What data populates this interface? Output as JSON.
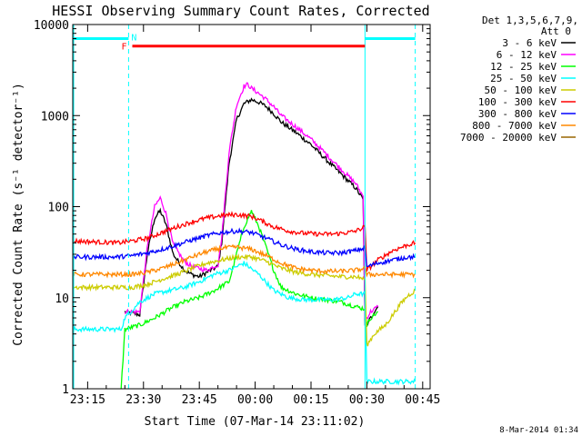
{
  "chart_data": {
    "type": "line",
    "title": "HESSI Observing Summary Count Rates, Corrected",
    "xlabel": "Start Time (07-Mar-14 23:11:02)",
    "ylabel": "Corrected Count Rate (s⁻¹ detector⁻¹)",
    "footer": "8-Mar-2014 01:34",
    "yscale": "log",
    "ylim": [
      1,
      10000
    ],
    "xlim_minutes": [
      0,
      96
    ],
    "x_ticks": [
      {
        "t": 4,
        "label": "23:15"
      },
      {
        "t": 19,
        "label": "23:30"
      },
      {
        "t": 34,
        "label": "23:45"
      },
      {
        "t": 49,
        "label": "00:00"
      },
      {
        "t": 64,
        "label": "00:15"
      },
      {
        "t": 79,
        "label": "00:30"
      },
      {
        "t": 94,
        "label": "00:45"
      }
    ],
    "y_ticks": [
      {
        "v": 1,
        "label": "1"
      },
      {
        "v": 10,
        "label": "10"
      },
      {
        "v": 100,
        "label": "100"
      },
      {
        "v": 1000,
        "label": "1000"
      },
      {
        "v": 10000,
        "label": "10000"
      }
    ],
    "legend": {
      "header": [
        "Det 1,3,5,6,7,9,",
        "Att 0"
      ],
      "position": "right"
    },
    "annotations": {
      "night_label": "N",
      "flare_label": "F",
      "night_color": "#00ffff",
      "flare_color": "#ff0000",
      "night_dashed_x": [
        15,
        92
      ],
      "day_solid_x": 78.5,
      "night_bar_segments": [
        [
          0,
          15
        ],
        [
          78.5,
          92
        ]
      ],
      "flare_bar": [
        16,
        78.5
      ]
    },
    "series": [
      {
        "name": "3 - 6 keV",
        "color": "#000000",
        "x": [
          14,
          18,
          20,
          22,
          23.5,
          25,
          27,
          30,
          32,
          34,
          36,
          37,
          38,
          39,
          40,
          42,
          44,
          46,
          48,
          50,
          52,
          54,
          56,
          60,
          64,
          68,
          72,
          76,
          78,
          78.5,
          79,
          80,
          81,
          82
        ],
        "y": [
          7,
          6.5,
          30,
          75,
          90,
          65,
          30,
          20,
          18,
          17,
          19,
          20,
          21,
          22,
          40,
          300,
          900,
          1350,
          1500,
          1400,
          1250,
          1050,
          850,
          650,
          480,
          330,
          230,
          160,
          120,
          5,
          5,
          6,
          7,
          8
        ]
      },
      {
        "name": "6 - 12 keV",
        "color": "#ff00ff",
        "x": [
          14,
          18,
          20,
          22,
          23.5,
          25,
          27,
          30,
          32,
          34,
          36,
          37,
          38,
          39,
          40,
          42,
          44,
          46,
          47,
          48,
          50,
          52,
          54,
          56,
          60,
          64,
          68,
          72,
          76,
          78,
          78.5,
          79,
          80,
          82
        ],
        "y": [
          7,
          7,
          35,
          100,
          125,
          85,
          38,
          25,
          22,
          21,
          20,
          21,
          22,
          23,
          45,
          400,
          1300,
          2100,
          2200,
          2000,
          1750,
          1500,
          1250,
          1000,
          750,
          550,
          380,
          260,
          180,
          130,
          6,
          6,
          7,
          8
        ]
      },
      {
        "name": "12 - 25 keV",
        "color": "#00ff00",
        "x": [
          13,
          14,
          18,
          22,
          26,
          30,
          34,
          38,
          42,
          46,
          48,
          50,
          52,
          54,
          56,
          60,
          64,
          68,
          72,
          76,
          78.5,
          79,
          80,
          82
        ],
        "y": [
          1,
          4.5,
          5,
          6,
          7.5,
          9,
          10,
          12,
          15,
          60,
          90,
          60,
          35,
          20,
          13,
          11,
          10,
          9.5,
          9,
          8,
          7.5,
          5,
          6,
          7
        ]
      },
      {
        "name": "25 - 50 keV",
        "color": "#00ffff",
        "x": [
          0,
          4,
          8,
          12,
          13,
          14,
          18,
          22,
          26,
          30,
          34,
          38,
          42,
          46,
          50,
          54,
          58,
          62,
          66,
          70,
          74,
          76,
          78.5,
          79,
          80,
          82,
          84,
          86,
          90,
          92
        ],
        "y": [
          4.5,
          4.5,
          4.5,
          4.5,
          4.5,
          6,
          9,
          11,
          12,
          13,
          15,
          18,
          20,
          24,
          18,
          12,
          10,
          9.5,
          9.5,
          9.5,
          10,
          11,
          11,
          1.2,
          1.2,
          1.2,
          1.2,
          1.2,
          1.2,
          1.2
        ]
      },
      {
        "name": "50 - 100 keV",
        "color": "#cccc00",
        "x": [
          0,
          4,
          8,
          12,
          13,
          16,
          20,
          24,
          28,
          32,
          36,
          40,
          44,
          48,
          52,
          56,
          60,
          64,
          68,
          72,
          76,
          78.5,
          79,
          81,
          84,
          86,
          88,
          90,
          92
        ],
        "y": [
          13,
          13,
          13,
          13,
          13,
          13,
          14,
          16,
          18,
          21,
          24,
          26,
          28,
          28,
          25,
          21,
          19,
          18,
          17.5,
          17,
          17,
          16,
          3,
          4,
          5,
          6.5,
          8.5,
          10.5,
          12
        ]
      },
      {
        "name": "100 - 300 keV",
        "color": "#ff0000",
        "x": [
          0,
          6,
          12,
          16,
          20,
          24,
          28,
          32,
          36,
          40,
          44,
          48,
          50,
          54,
          58,
          62,
          66,
          70,
          74,
          76,
          78.5,
          79,
          82,
          86,
          90,
          92
        ],
        "y": [
          42,
          41,
          40,
          42,
          45,
          52,
          60,
          68,
          75,
          80,
          82,
          78,
          72,
          60,
          54,
          51,
          50,
          50,
          52,
          54,
          60,
          20,
          26,
          33,
          38,
          40
        ]
      },
      {
        "name": "300 - 800 keV",
        "color": "#0000ff",
        "x": [
          0,
          6,
          12,
          16,
          20,
          24,
          28,
          32,
          36,
          40,
          44,
          48,
          52,
          56,
          60,
          64,
          68,
          72,
          76,
          78.5,
          79,
          82,
          86,
          90,
          92
        ],
        "y": [
          28,
          28,
          28,
          29,
          31,
          34,
          38,
          43,
          48,
          52,
          54,
          52,
          45,
          38,
          34,
          32,
          31,
          31,
          33,
          35,
          22,
          24,
          26,
          28,
          28
        ]
      },
      {
        "name": "800 - 7000 keV",
        "color": "#ff8800",
        "x": [
          0,
          6,
          12,
          16,
          20,
          24,
          28,
          32,
          36,
          40,
          44,
          48,
          52,
          56,
          60,
          64,
          68,
          72,
          76,
          78.5,
          79,
          82,
          86,
          90,
          92
        ],
        "y": [
          18,
          18,
          18,
          18,
          19,
          21,
          24,
          28,
          32,
          35,
          36,
          34,
          29,
          24,
          21,
          20,
          19.5,
          19.5,
          20,
          21,
          18,
          18,
          18,
          18,
          18
        ]
      },
      {
        "name": "7000 - 20000 keV",
        "color": "#996600",
        "x": [],
        "y": []
      }
    ]
  }
}
